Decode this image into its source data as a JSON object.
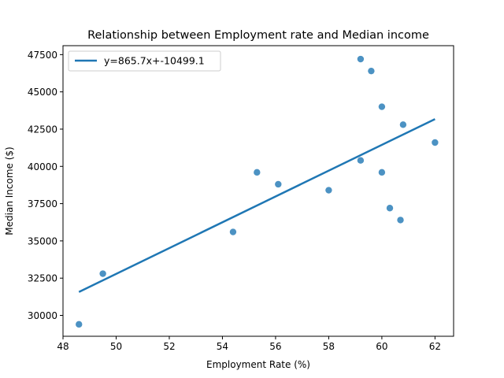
{
  "chart_data": {
    "type": "scatter",
    "title": "Relationship between Employment rate and Median income",
    "xlabel": "Employment Rate (%)",
    "ylabel": "Median Income ($)",
    "xlim": [
      48.0,
      62.7
    ],
    "ylim": [
      28600,
      48100
    ],
    "x_ticks": [
      48,
      50,
      52,
      54,
      56,
      58,
      60,
      62
    ],
    "y_ticks": [
      30000,
      32500,
      35000,
      37500,
      40000,
      42500,
      45000,
      47500
    ],
    "grid": false,
    "legend_position": "upper-left",
    "series": [
      {
        "type": "scatter",
        "color": "#1f77b4",
        "points": [
          {
            "x": 48.6,
            "y": 29400
          },
          {
            "x": 49.5,
            "y": 32800
          },
          {
            "x": 54.4,
            "y": 35600
          },
          {
            "x": 55.3,
            "y": 39600
          },
          {
            "x": 56.1,
            "y": 38800
          },
          {
            "x": 58.0,
            "y": 38400
          },
          {
            "x": 59.2,
            "y": 47200
          },
          {
            "x": 59.2,
            "y": 40400
          },
          {
            "x": 59.6,
            "y": 46400
          },
          {
            "x": 60.0,
            "y": 44000
          },
          {
            "x": 60.0,
            "y": 39600
          },
          {
            "x": 60.3,
            "y": 37200
          },
          {
            "x": 60.7,
            "y": 36400
          },
          {
            "x": 60.8,
            "y": 42800
          },
          {
            "x": 62.0,
            "y": 41600
          }
        ]
      },
      {
        "type": "line",
        "name": "y=865.7x+-10499.1",
        "color": "#1f77b4",
        "slope": 865.7,
        "intercept": -10499.1,
        "x_range": [
          48.6,
          62.0
        ]
      }
    ]
  }
}
